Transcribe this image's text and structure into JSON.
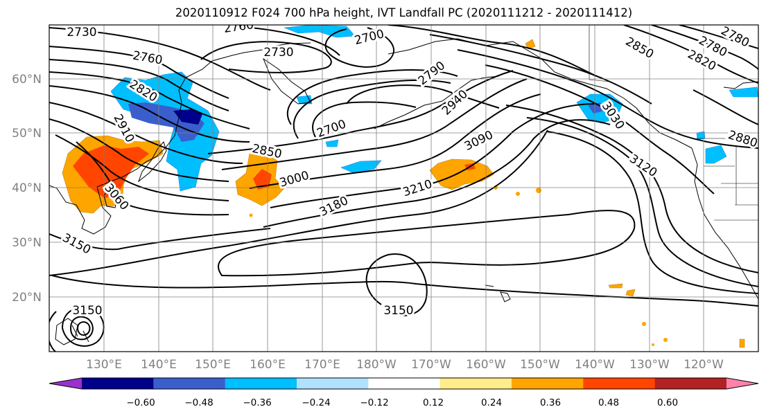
{
  "title": "2020110912 F024 700 hPa height, IVT Landfall PC (2020111212 - 2020111412)",
  "map": {
    "lat_labels": [
      "60°N",
      "50°N",
      "40°N",
      "30°N",
      "20°N"
    ],
    "lon_labels": [
      "130°E",
      "140°E",
      "150°E",
      "160°E",
      "170°E",
      "180°W",
      "170°W",
      "160°W",
      "150°W",
      "140°W",
      "130°W",
      "120°W"
    ],
    "gridlines": true,
    "contour_labels": [
      "2730",
      "2760",
      "2730",
      "2700",
      "2760",
      "2820",
      "2910",
      "3060",
      "2850",
      "3000",
      "2700",
      "2790",
      "2940",
      "3090",
      "3180",
      "3210",
      "3150",
      "3150",
      "3150",
      "2850",
      "2820",
      "2780",
      "2780",
      "3030",
      "2880",
      "3120"
    ]
  },
  "colorbar": {
    "ticks": [
      "−0.60",
      "−0.48",
      "−0.36",
      "−0.24",
      "−0.12",
      "0.12",
      "0.24",
      "0.36",
      "0.48",
      "0.60"
    ],
    "colors": [
      "#9932cc",
      "#00008b",
      "#3a5fcd",
      "#00bfff",
      "#b0e2ff",
      "#ffffff",
      "#ffec8b",
      "#ffa500",
      "#ff4500",
      "#b22222",
      "#ff82ab"
    ]
  }
}
